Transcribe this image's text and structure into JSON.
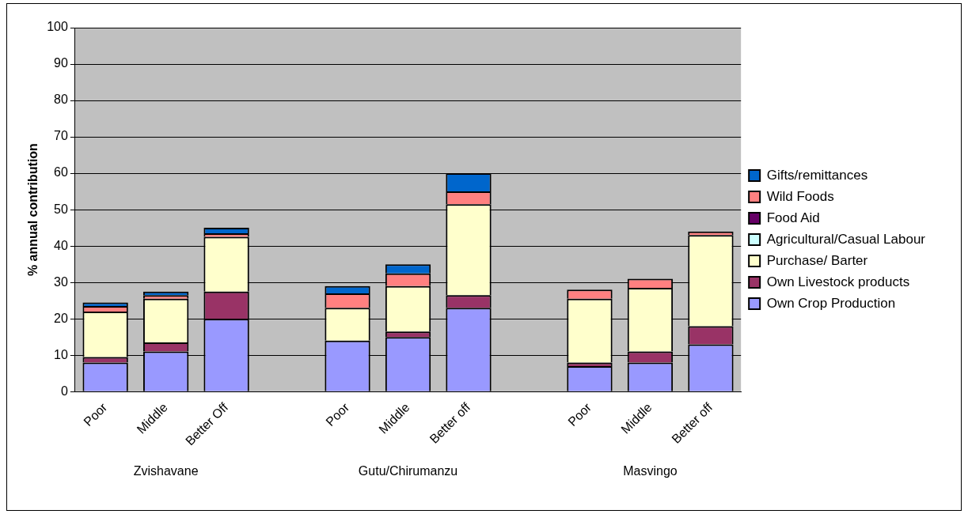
{
  "chart_data": {
    "type": "bar",
    "stacked": true,
    "ylabel": "% annual contribution",
    "categories": [
      "Poor",
      "Middle",
      "Better Off",
      null,
      "Poor",
      "Middle",
      "Better off",
      null,
      "Poor",
      "Middle",
      "Better off"
    ],
    "series": [
      {
        "name": "Own Crop Production",
        "color": "#9999ff",
        "values": [
          8,
          11,
          20,
          null,
          14,
          15,
          23,
          null,
          7,
          8,
          13
        ]
      },
      {
        "name": "Own Livestock products",
        "color": "#993366",
        "values": [
          1.5,
          2.5,
          7.5,
          null,
          0,
          1.5,
          3.5,
          null,
          1,
          3,
          5
        ]
      },
      {
        "name": "Purchase/ Barter",
        "color": "#ffffcc",
        "values": [
          12.5,
          12,
          15,
          null,
          9,
          12.5,
          25,
          null,
          17.5,
          17.5,
          25
        ]
      },
      {
        "name": "Agricultural/Casual Labour",
        "color": "#ccffff",
        "values": [
          0,
          0,
          0,
          null,
          0,
          0,
          0,
          null,
          0,
          0,
          0
        ]
      },
      {
        "name": "Food Aid",
        "color": "#660066",
        "values": [
          0,
          0,
          0,
          null,
          0,
          0,
          0,
          null,
          0,
          0,
          0
        ]
      },
      {
        "name": "Wild Foods",
        "color": "#ff8080",
        "values": [
          1.5,
          1,
          1,
          null,
          4,
          3.5,
          3.5,
          null,
          2.5,
          2.5,
          1
        ]
      },
      {
        "name": "Gifts/remittances",
        "color": "#0066cc",
        "values": [
          1,
          1,
          1.5,
          null,
          2,
          2.5,
          5,
          null,
          0,
          0,
          0
        ]
      }
    ],
    "ylim": [
      0,
      100
    ],
    "yticks": [
      0,
      10,
      20,
      30,
      40,
      50,
      60,
      70,
      80,
      90,
      100
    ],
    "grid": "y",
    "legend": "right",
    "annotations": [
      "Zvishavane",
      "Gutu/Chirumanzu",
      "Masvingo"
    ]
  }
}
